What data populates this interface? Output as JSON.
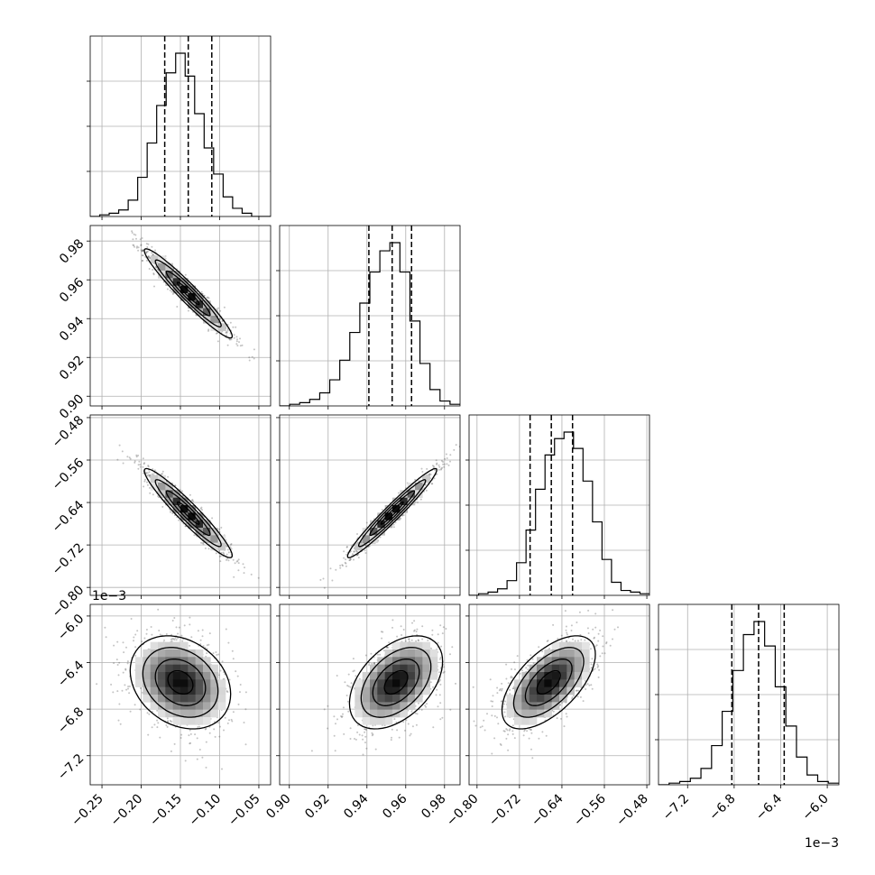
{
  "chart_data": {
    "type": "corner",
    "grid": true,
    "params": [
      {
        "range": [
          -0.265,
          -0.035
        ],
        "ticks": [
          -0.25,
          -0.2,
          -0.15,
          -0.1,
          -0.05
        ],
        "tick_labels": [
          "−0.25",
          "−0.20",
          "−0.15",
          "−0.10",
          "−0.05"
        ],
        "scale_note": "",
        "quantiles": [
          -0.17,
          -0.14,
          -0.11
        ],
        "hist_bins": [
          0,
          1,
          2,
          4,
          10,
          24,
          45,
          68,
          88,
          100,
          86,
          63,
          42,
          26,
          12,
          5,
          2,
          0,
          0
        ]
      },
      {
        "range": [
          0.895,
          0.988
        ],
        "ticks": [
          0.9,
          0.92,
          0.94,
          0.96,
          0.98
        ],
        "tick_labels": [
          "0.90",
          "0.92",
          "0.94",
          "0.96",
          "0.98"
        ],
        "scale_note": "",
        "quantiles": [
          0.941,
          0.953,
          0.963
        ],
        "hist_bins": [
          0,
          1,
          2,
          4,
          8,
          16,
          28,
          45,
          63,
          82,
          95,
          100,
          82,
          52,
          26,
          10,
          3,
          1
        ]
      },
      {
        "range": [
          -0.815,
          -0.475
        ],
        "ticks": [
          -0.8,
          -0.72,
          -0.64,
          -0.56,
          -0.48
        ],
        "tick_labels": [
          "−0.80",
          "−0.72",
          "−0.64",
          "−0.56",
          "−0.48"
        ],
        "scale_note": "",
        "quantiles": [
          -0.7,
          -0.66,
          -0.62
        ],
        "hist_bins": [
          0,
          1,
          2,
          4,
          9,
          20,
          40,
          65,
          86,
          96,
          100,
          90,
          70,
          45,
          22,
          8,
          3,
          2,
          1
        ]
      },
      {
        "range": [
          -7.45,
          -5.9
        ],
        "ticks": [
          -7.2,
          -6.8,
          -6.4,
          -6.0
        ],
        "tick_labels": [
          "−7.2",
          "−6.8",
          "−6.4",
          "−6.0"
        ],
        "scale_note": "1e−3",
        "quantiles": [
          -6.82,
          -6.59,
          -6.37
        ],
        "hist_bins": [
          0,
          1,
          2,
          4,
          10,
          24,
          45,
          70,
          92,
          100,
          85,
          60,
          36,
          17,
          6,
          2,
          1
        ]
      }
    ],
    "pairs": [
      {
        "row": 1,
        "col": 0,
        "mean": [
          -0.14,
          0.953
        ],
        "sd": [
          0.028,
          0.0115
        ],
        "corr": -0.96
      },
      {
        "row": 2,
        "col": 0,
        "mean": [
          -0.14,
          -0.66
        ],
        "sd": [
          0.028,
          0.042
        ],
        "corr": -0.95
      },
      {
        "row": 2,
        "col": 1,
        "mean": [
          0.953,
          -0.66
        ],
        "sd": [
          0.0115,
          0.042
        ],
        "corr": 0.97
      },
      {
        "row": 3,
        "col": 0,
        "mean": [
          -0.15,
          -6.57
        ],
        "sd": [
          0.032,
          0.2
        ],
        "corr": -0.25
      },
      {
        "row": 3,
        "col": 1,
        "mean": [
          0.955,
          -6.57
        ],
        "sd": [
          0.012,
          0.2
        ],
        "corr": 0.45
      },
      {
        "row": 3,
        "col": 2,
        "mean": [
          -0.665,
          -6.57
        ],
        "sd": [
          0.044,
          0.2
        ],
        "corr": 0.6
      }
    ]
  }
}
